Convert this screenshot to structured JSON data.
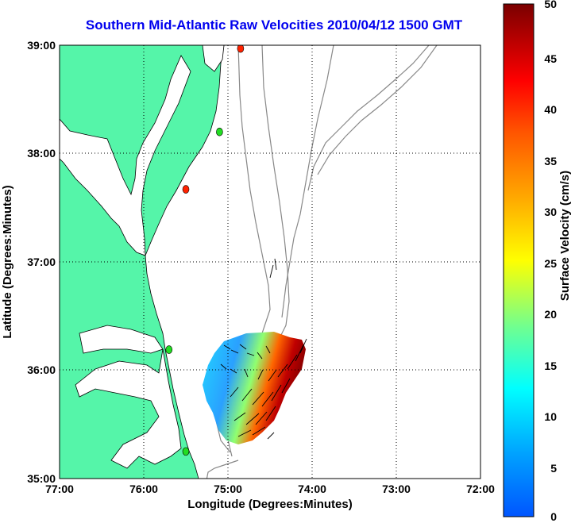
{
  "title": "Southern Mid-Atlantic Raw Velocities 2010/04/12 1500 GMT",
  "x_axis": {
    "label": "Longitude (Degrees:Minutes)",
    "ticks": [
      "77:00",
      "76:00",
      "75:00",
      "74:00",
      "73:00",
      "72:00"
    ]
  },
  "y_axis": {
    "label": "Latitude (Degrees:Minutes)",
    "ticks": [
      "39:00",
      "38:00",
      "37:00",
      "36:00",
      "35:00"
    ]
  },
  "colorbar": {
    "label": "Surface Velocity (cm/s)",
    "ticks": [
      "50",
      "45",
      "40",
      "35",
      "30",
      "25",
      "20",
      "15",
      "10",
      "5",
      "0"
    ],
    "min": 0,
    "max": 50,
    "colormap": "jet"
  },
  "chart_data": {
    "type": "map",
    "extent": {
      "lon": [
        -77,
        -72
      ],
      "lat": [
        35,
        39
      ]
    },
    "land_color": "#55f5a9",
    "grid": "dotted",
    "stations": [
      {
        "color": "#ff2200",
        "lon": -74.85,
        "lat": 38.97
      },
      {
        "color": "#22dd22",
        "lon": -75.1,
        "lat": 38.2
      },
      {
        "color": "#ff2200",
        "lon": -75.5,
        "lat": 37.67
      },
      {
        "color": "#22dd22",
        "lon": -75.7,
        "lat": 36.19
      },
      {
        "color": "#22dd22",
        "lon": -75.5,
        "lat": 35.25
      }
    ]
  }
}
